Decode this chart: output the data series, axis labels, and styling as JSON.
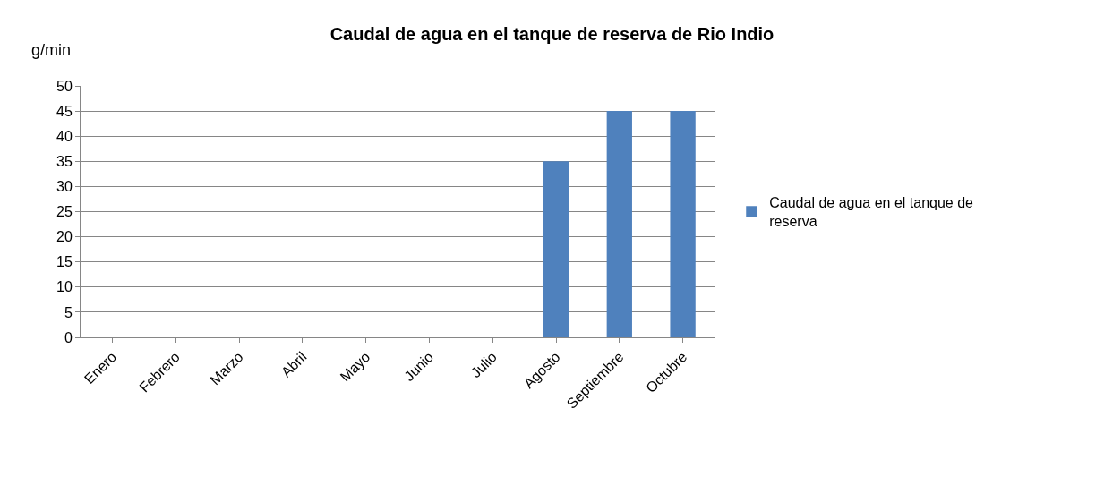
{
  "chart_data": {
    "type": "bar",
    "title": "Caudal de agua en el tanque de reserva de Rio Indio",
    "ylabel": "g/min",
    "categories": [
      "Enero",
      "Febrero",
      "Marzo",
      "Abril",
      "Mayo",
      "Junio",
      "Julio",
      "Agosto",
      "Septiembre",
      "Octubre"
    ],
    "series": [
      {
        "name": "Caudal de agua en el tanque de reserva",
        "color": "#4f81bd",
        "values": [
          0,
          0,
          0,
          0,
          0,
          0,
          0,
          35,
          45,
          45
        ]
      }
    ],
    "ylim": [
      0,
      50
    ],
    "yticks": [
      0,
      5,
      10,
      15,
      20,
      25,
      30,
      35,
      40,
      45,
      50
    ],
    "grid": "y",
    "legend": "right"
  }
}
